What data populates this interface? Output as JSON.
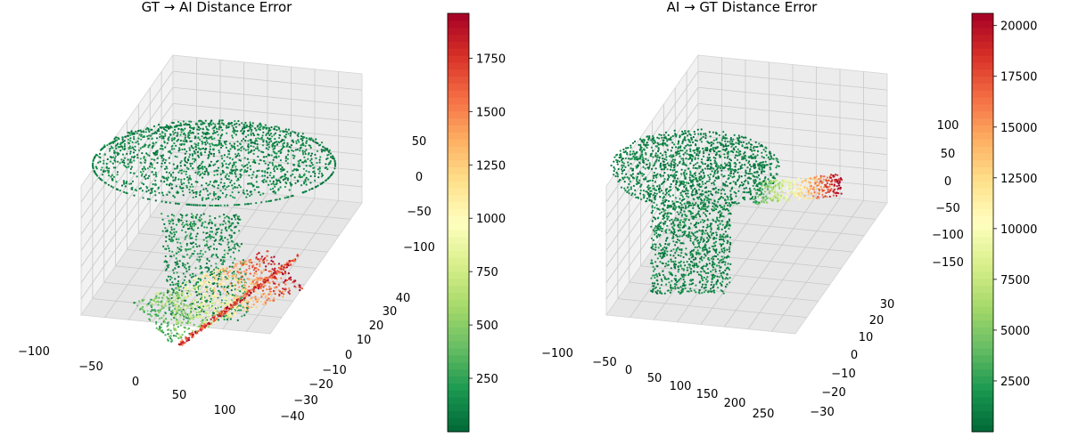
{
  "chart_data": [
    {
      "type": "scatter",
      "title": "GT → AI Distance Error",
      "x_ticks": [
        "−100",
        "−50",
        "0",
        "50",
        "100"
      ],
      "y_ticks": [
        "−40",
        "−30",
        "−20",
        "−10",
        "0",
        "10",
        "20",
        "30",
        "40"
      ],
      "z_ticks": [
        "−100",
        "−50",
        "0",
        "50"
      ],
      "xlim": [
        -110,
        125
      ],
      "ylim": [
        -42,
        42
      ],
      "zlim": [
        -125,
        90
      ],
      "colorbar": {
        "cmap": "RdYlGn_r",
        "range": [
          0,
          1960
        ],
        "ticks": [
          250,
          500,
          750,
          1000,
          1250,
          1500,
          1750
        ],
        "tick_labels": [
          "250",
          "500",
          "750",
          "1000",
          "1250",
          "1500",
          "1750"
        ]
      },
      "grid": true
    },
    {
      "type": "scatter",
      "title": "AI → GT Distance Error",
      "x_ticks": [
        "−100",
        "−50",
        "0",
        "50",
        "100",
        "150",
        "200",
        "250"
      ],
      "y_ticks": [
        "−30",
        "−20",
        "−10",
        "0",
        "10",
        "20",
        "30"
      ],
      "z_ticks": [
        "−150",
        "−100",
        "−50",
        "0",
        "50",
        "100"
      ],
      "xlim": [
        -110,
        280
      ],
      "ylim": [
        -35,
        35
      ],
      "zlim": [
        -170,
        135
      ],
      "colorbar": {
        "cmap": "RdYlGn_r",
        "range": [
          0,
          20600
        ],
        "ticks": [
          2500,
          5000,
          7500,
          10000,
          12500,
          15000,
          17500,
          20000
        ],
        "tick_labels": [
          "2500",
          "5000",
          "7500",
          "10000",
          "12500",
          "15000",
          "17500",
          "20000"
        ]
      },
      "grid": true
    }
  ]
}
